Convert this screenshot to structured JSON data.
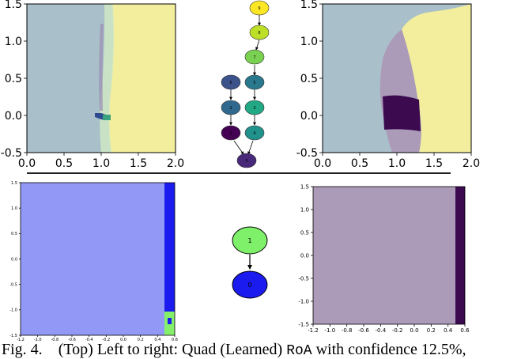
{
  "figure": {
    "caption": {
      "prefix": "Fig. 4.",
      "text1": "(Top) Left to right: Quad (Learned)",
      "code": "RoA",
      "text2": "with confidence 12.5%,"
    }
  },
  "chart_data": [
    {
      "type": "heatmap",
      "panel": "top-left",
      "xlim": [
        0.0,
        2.0
      ],
      "ylim": [
        -0.5,
        1.5
      ],
      "xticks": [
        "0.0",
        "0.5",
        "1.0",
        "1.5",
        "2.0"
      ],
      "yticks": [
        "-0.5",
        "0.0",
        "0.5",
        "1.0",
        "1.5"
      ],
      "colors": {
        "left": "#a9bfca",
        "right": "#f3ee9e",
        "band": "#cfe7c4",
        "spot": "#2f4b8f"
      }
    },
    {
      "type": "diagram",
      "panel": "top-middle",
      "nodes": [
        "9",
        "8",
        "7",
        "6",
        "5",
        "4",
        "3",
        "2",
        "1",
        "0"
      ],
      "colors": [
        "#fde725",
        "#bddf26",
        "#7ad151",
        "#3b528b",
        "#2a788e",
        "#21918c",
        "#22a884",
        "#31688e",
        "#440154",
        "#482878"
      ]
    },
    {
      "type": "heatmap",
      "panel": "top-right",
      "xlim": [
        0.0,
        2.0
      ],
      "ylim": [
        -0.5,
        1.5
      ],
      "xticks": [
        "0.0",
        "0.5",
        "1.0",
        "1.5",
        "2.0"
      ],
      "yticks": [
        "-0.5",
        "0.0",
        "0.5",
        "1.0",
        "1.5"
      ],
      "colors": {
        "background": "#a9bfca",
        "yellow": "#f3ee9e",
        "purple": "#ab9ab8",
        "dark": "#3b0a4f"
      }
    },
    {
      "type": "heatmap",
      "panel": "bottom-left",
      "xlim": [
        -1.2,
        0.6
      ],
      "ylim": [
        -1.5,
        1.5
      ],
      "xticks": [
        "-1.2",
        "-1.0",
        "-0.8",
        "-0.6",
        "-0.4",
        "-0.2",
        "0.0",
        "0.2",
        "0.4",
        "0.6"
      ],
      "yticks": [
        "-1.5",
        "-1.0",
        "-0.5",
        "0.0",
        "0.5",
        "1.0",
        "1.5"
      ],
      "colors": {
        "field": "#9198f6",
        "strip": "#1b1bf0",
        "corner": "#84f06a"
      }
    },
    {
      "type": "diagram",
      "panel": "bottom-middle",
      "nodes": [
        "1",
        "0"
      ],
      "colors": [
        "#7ef06a",
        "#1b1bf0"
      ]
    },
    {
      "type": "heatmap",
      "panel": "bottom-right",
      "xlim": [
        -1.2,
        0.6
      ],
      "ylim": [
        -1.5,
        1.5
      ],
      "xticks": [
        "-1.2",
        "-1.0",
        "-0.8",
        "-0.6",
        "-0.4",
        "-0.2",
        "0.0",
        "0.2",
        "0.4",
        "0.6"
      ],
      "yticks": [
        "-1.5",
        "-1.0",
        "-0.5",
        "0.0",
        "0.5",
        "1.0",
        "1.5"
      ],
      "colors": {
        "field": "#ab9ab8",
        "strip": "#3b0a4f"
      }
    }
  ]
}
